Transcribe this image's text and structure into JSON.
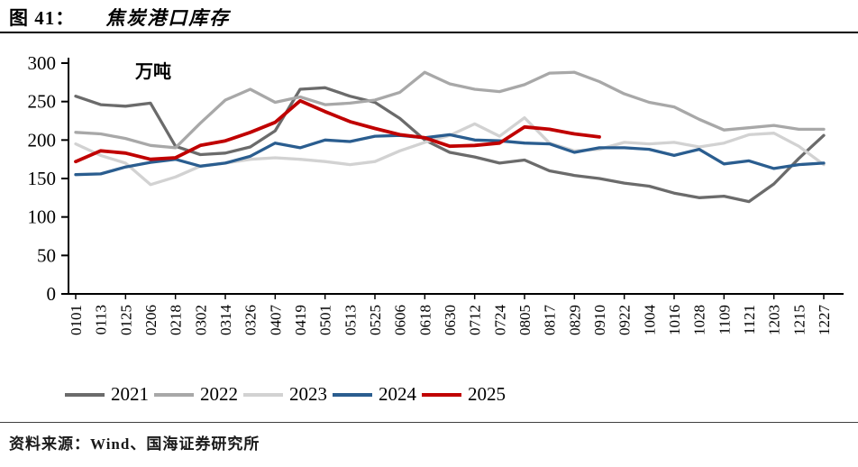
{
  "figure": {
    "label": "图 41：",
    "title": "焦炭港口库存"
  },
  "unit_label": "万吨",
  "source": "资料来源：Wind、国海证券研究所",
  "chart_data": {
    "type": "line",
    "title": "焦炭港口库存",
    "ylabel": "万吨",
    "xlabel": "",
    "ylim": [
      0,
      300
    ],
    "y_ticks": [
      0,
      50,
      100,
      150,
      200,
      250,
      300
    ],
    "grid": false,
    "legend_position": "bottom",
    "categories": [
      "0101",
      "0113",
      "0125",
      "0206",
      "0218",
      "0302",
      "0314",
      "0326",
      "0407",
      "0419",
      "0501",
      "0513",
      "0525",
      "0606",
      "0618",
      "0630",
      "0712",
      "0724",
      "0805",
      "0817",
      "0829",
      "0910",
      "0922",
      "1004",
      "1016",
      "1028",
      "1109",
      "1121",
      "1203",
      "1215",
      "1227"
    ],
    "series": [
      {
        "name": "2021",
        "color": "#6b6b6b",
        "values": [
          257,
          246,
          244,
          248,
          192,
          181,
          183,
          191,
          212,
          266,
          268,
          257,
          249,
          228,
          200,
          184,
          178,
          170,
          174,
          160,
          154,
          150,
          144,
          140,
          131,
          125,
          127,
          120,
          143,
          176,
          206
        ]
      },
      {
        "name": "2022",
        "color": "#a8a8a8",
        "values": [
          210,
          208,
          202,
          193,
          190,
          222,
          252,
          266,
          249,
          256,
          246,
          248,
          252,
          262,
          288,
          273,
          266,
          263,
          272,
          287,
          288,
          276,
          260,
          249,
          243,
          227,
          213,
          216,
          219,
          214,
          214
        ]
      },
      {
        "name": "2023",
        "color": "#d2d2d2",
        "values": [
          195,
          180,
          170,
          142,
          152,
          166,
          170,
          175,
          177,
          175,
          172,
          168,
          172,
          186,
          197,
          206,
          221,
          205,
          229,
          196,
          186,
          188,
          197,
          195,
          197,
          191,
          196,
          207,
          209,
          192,
          168
        ]
      },
      {
        "name": "2024",
        "color": "#2a5d8f",
        "values": [
          155,
          156,
          165,
          171,
          175,
          166,
          170,
          179,
          196,
          190,
          200,
          198,
          205,
          206,
          203,
          207,
          200,
          199,
          196,
          195,
          184,
          190,
          190,
          188,
          180,
          188,
          169,
          173,
          163,
          168,
          170
        ]
      },
      {
        "name": "2025",
        "color": "#c00000",
        "values": [
          172,
          186,
          183,
          175,
          177,
          193,
          199,
          210,
          223,
          251,
          237,
          224,
          215,
          207,
          203,
          192,
          193,
          196,
          217,
          214,
          208,
          204,
          null,
          null,
          null,
          null,
          null,
          null,
          null,
          null,
          null
        ]
      }
    ]
  }
}
